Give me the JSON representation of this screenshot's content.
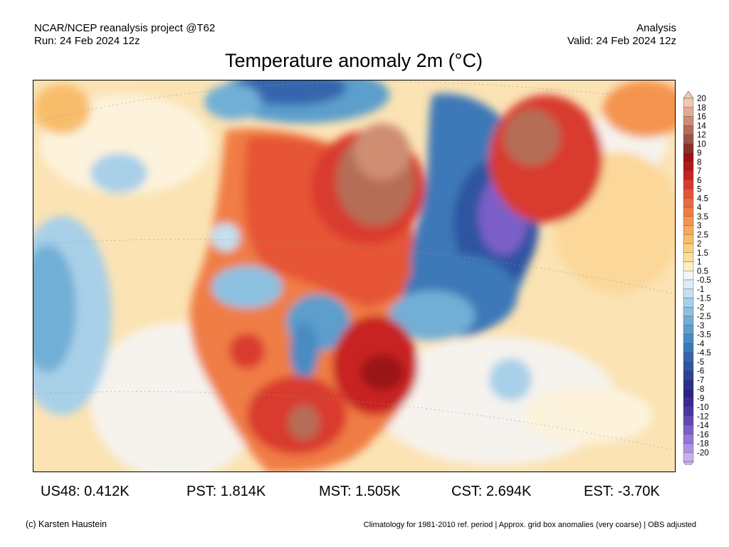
{
  "header": {
    "left_line1": "NCAR/NCEP reanalysis project @T62",
    "left_line2": "Run: 24 Feb 2024 12z",
    "right_line1": "Analysis",
    "right_line2": "Valid: 24 Feb 2024 12z"
  },
  "title": "Temperature anomaly 2m (°C)",
  "colorbar": {
    "labels": [
      "20",
      "18",
      "16",
      "14",
      "12",
      "10",
      "9",
      "8",
      "7",
      "6",
      "5",
      "4.5",
      "4",
      "3.5",
      "3",
      "2.5",
      "2",
      "1.5",
      "1",
      "0.5",
      "-0.5",
      "-1",
      "-1.5",
      "-2",
      "-2.5",
      "-3",
      "-3.5",
      "-4",
      "-4.5",
      "-5",
      "-6",
      "-7",
      "-8",
      "-9",
      "-10",
      "-12",
      "-14",
      "-16",
      "-18",
      "-20"
    ],
    "colors": [
      "#f0c7b0",
      "#e4ab93",
      "#cf8d72",
      "#b56d57",
      "#9a5447",
      "#8a2f2a",
      "#9a1212",
      "#b31717",
      "#c82222",
      "#d93a2e",
      "#e65536",
      "#ec6a3c",
      "#f07d44",
      "#f4944f",
      "#f6a95b",
      "#f8bd6a",
      "#fad07d",
      "#fbe09a",
      "#fcefc4",
      "#f5f5f5",
      "#dcebf6",
      "#c3dff0",
      "#a8d0e8",
      "#8cc0df",
      "#72afd6",
      "#5c9ecc",
      "#4a8bc2",
      "#3d78b8",
      "#3566ad",
      "#2f54a1",
      "#2b4296",
      "#28318b",
      "#2a2480",
      "#3b2a8e",
      "#4c36a0",
      "#6147b5",
      "#7a5fc8",
      "#9477d8",
      "#ad91e3",
      "#c8b0ee"
    ]
  },
  "stats": [
    {
      "label": "US48: 0.412K"
    },
    {
      "label": "PST: 1.814K"
    },
    {
      "label": "MST: 1.505K"
    },
    {
      "label": "CST: 2.694K"
    },
    {
      "label": "EST: -3.70K"
    }
  ],
  "footer": {
    "left": "(c) Karsten Haustein",
    "right": "Climatology for 1981-2010 ref. period | Approx. grid box anomalies (very coarse) | OBS adjusted"
  }
}
